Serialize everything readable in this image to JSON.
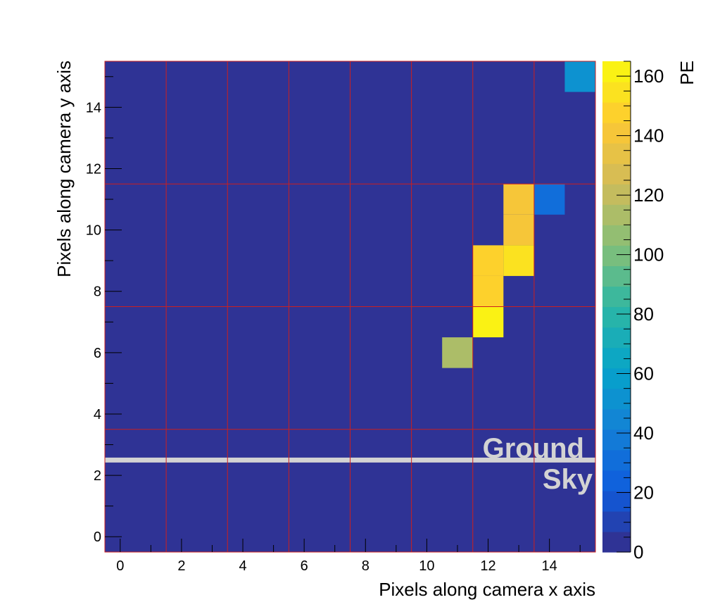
{
  "chart_data": {
    "type": "heatmap",
    "title": "",
    "xlabel": "Pixels along camera x axis",
    "ylabel": "Pixels along camera y axis",
    "colorbar_label": "PE",
    "xlim": [
      -0.5,
      15.5
    ],
    "ylim": [
      -0.5,
      15.5
    ],
    "zlim": [
      0,
      165
    ],
    "x_ticks": [
      0,
      2,
      4,
      6,
      8,
      10,
      12,
      14
    ],
    "y_ticks": [
      0,
      2,
      4,
      6,
      8,
      10,
      12,
      14
    ],
    "colorbar_ticks": [
      0,
      20,
      40,
      60,
      80,
      100,
      120,
      140,
      160
    ],
    "background_value": 0,
    "cells": [
      {
        "x": 15,
        "y": 15,
        "value": 50
      },
      {
        "x": 13,
        "y": 11,
        "value": 140
      },
      {
        "x": 13,
        "y": 10,
        "value": 140
      },
      {
        "x": 14,
        "y": 11,
        "value": 30
      },
      {
        "x": 12,
        "y": 9,
        "value": 145
      },
      {
        "x": 13,
        "y": 9,
        "value": 155
      },
      {
        "x": 12,
        "y": 8,
        "value": 145
      },
      {
        "x": 12,
        "y": 7,
        "value": 165
      },
      {
        "x": 11,
        "y": 6,
        "value": 110
      }
    ],
    "module_boundaries_x": [
      1.5,
      3.5,
      5.5,
      7.5,
      9.5,
      11.5,
      13.5
    ],
    "module_boundaries_y": [
      3.5,
      7.5,
      11.5
    ],
    "horizon_y": 2.5,
    "annotations": [
      "Ground",
      "Sky"
    ],
    "colors": {
      "grid": "#cc1f1f",
      "horizon": "#d3d3d3",
      "annotation": "#d3d3d3"
    }
  }
}
